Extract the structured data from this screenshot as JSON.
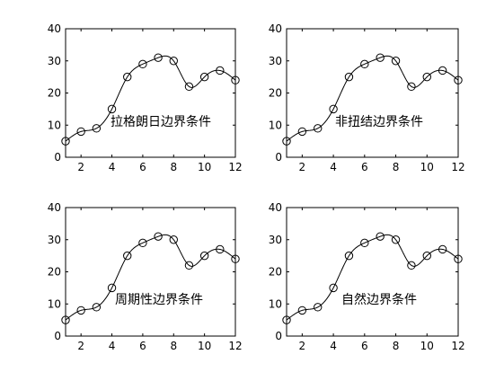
{
  "chart_data": [
    {
      "type": "line",
      "annotation": "拉格朗日边界条件",
      "x": [
        1,
        2,
        3,
        4,
        5,
        6,
        7,
        8,
        9,
        10,
        11,
        12
      ],
      "y": [
        5,
        8,
        9,
        15,
        25,
        29,
        31,
        30,
        22,
        25,
        27,
        24
      ],
      "xlim": [
        1,
        12
      ],
      "ylim": [
        0,
        40
      ],
      "xticks": [
        "2",
        "4",
        "6",
        "8",
        "10",
        "12"
      ],
      "yticks": [
        "0",
        "10",
        "20",
        "30",
        "40"
      ],
      "markers": "circle",
      "line": "smooth spline",
      "grid": false
    },
    {
      "type": "line",
      "annotation": "非扭结边界条件",
      "x": [
        1,
        2,
        3,
        4,
        5,
        6,
        7,
        8,
        9,
        10,
        11,
        12
      ],
      "y": [
        5,
        8,
        9,
        15,
        25,
        29,
        31,
        30,
        22,
        25,
        27,
        24
      ],
      "xlim": [
        1,
        12
      ],
      "ylim": [
        0,
        40
      ],
      "xticks": [
        "2",
        "4",
        "6",
        "8",
        "10",
        "12"
      ],
      "yticks": [
        "0",
        "10",
        "20",
        "30",
        "40"
      ],
      "markers": "circle",
      "line": "smooth spline",
      "grid": false
    },
    {
      "type": "line",
      "annotation": "周期性边界条件",
      "x": [
        1,
        2,
        3,
        4,
        5,
        6,
        7,
        8,
        9,
        10,
        11,
        12
      ],
      "y": [
        5,
        8,
        9,
        15,
        25,
        29,
        31,
        30,
        22,
        25,
        27,
        24
      ],
      "xlim": [
        1,
        12
      ],
      "ylim": [
        0,
        40
      ],
      "xticks": [
        "2",
        "4",
        "6",
        "8",
        "10",
        "12"
      ],
      "yticks": [
        "0",
        "10",
        "20",
        "30",
        "40"
      ],
      "markers": "circle",
      "line": "smooth spline",
      "grid": false
    },
    {
      "type": "line",
      "annotation": "自然边界条件",
      "x": [
        1,
        2,
        3,
        4,
        5,
        6,
        7,
        8,
        9,
        10,
        11,
        12
      ],
      "y": [
        5,
        8,
        9,
        15,
        25,
        29,
        31,
        30,
        22,
        25,
        27,
        24
      ],
      "xlim": [
        1,
        12
      ],
      "ylim": [
        0,
        40
      ],
      "xticks": [
        "2",
        "4",
        "6",
        "8",
        "10",
        "12"
      ],
      "yticks": [
        "0",
        "10",
        "20",
        "30",
        "40"
      ],
      "markers": "circle",
      "line": "smooth spline",
      "grid": false
    }
  ]
}
